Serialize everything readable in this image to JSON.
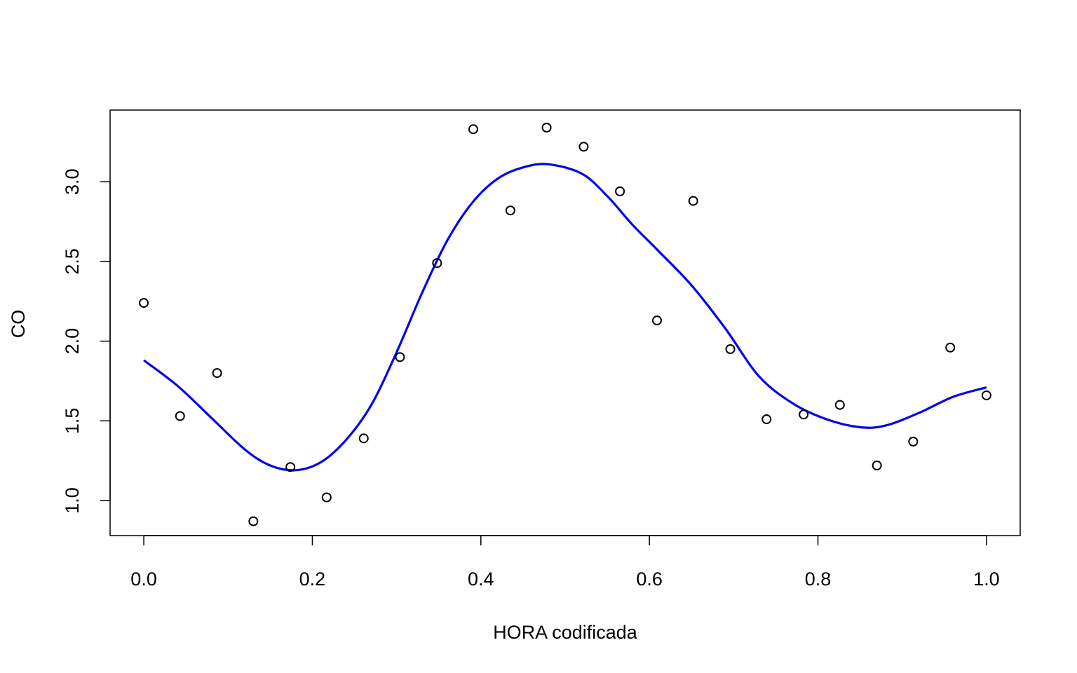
{
  "chart_data": {
    "type": "scatter",
    "title": "",
    "xlabel": "HORA codificada",
    "ylabel": "CO",
    "xlim": [
      -0.04,
      1.04
    ],
    "ylim": [
      0.78,
      3.45
    ],
    "x_ticks": [
      {
        "value": 0.0,
        "label": "0.0"
      },
      {
        "value": 0.2,
        "label": "0.2"
      },
      {
        "value": 0.4,
        "label": "0.4"
      },
      {
        "value": 0.6,
        "label": "0.6"
      },
      {
        "value": 0.8,
        "label": "0.8"
      },
      {
        "value": 1.0,
        "label": "1.0"
      }
    ],
    "y_ticks": [
      {
        "value": 1.0,
        "label": "1.0"
      },
      {
        "value": 1.5,
        "label": "1.5"
      },
      {
        "value": 2.0,
        "label": "2.0"
      },
      {
        "value": 2.5,
        "label": "2.5"
      },
      {
        "value": 3.0,
        "label": "3.0"
      }
    ],
    "grid": false,
    "points": [
      {
        "x": 0.0,
        "y": 2.24
      },
      {
        "x": 0.043,
        "y": 1.53
      },
      {
        "x": 0.087,
        "y": 1.8
      },
      {
        "x": 0.13,
        "y": 0.87
      },
      {
        "x": 0.174,
        "y": 1.21
      },
      {
        "x": 0.217,
        "y": 1.02
      },
      {
        "x": 0.261,
        "y": 1.39
      },
      {
        "x": 0.304,
        "y": 1.9
      },
      {
        "x": 0.348,
        "y": 2.49
      },
      {
        "x": 0.391,
        "y": 3.33
      },
      {
        "x": 0.435,
        "y": 2.82
      },
      {
        "x": 0.478,
        "y": 3.34
      },
      {
        "x": 0.522,
        "y": 3.22
      },
      {
        "x": 0.565,
        "y": 2.94
      },
      {
        "x": 0.609,
        "y": 2.13
      },
      {
        "x": 0.652,
        "y": 2.88
      },
      {
        "x": 0.696,
        "y": 1.95
      },
      {
        "x": 0.739,
        "y": 1.51
      },
      {
        "x": 0.783,
        "y": 1.54
      },
      {
        "x": 0.826,
        "y": 1.6
      },
      {
        "x": 0.87,
        "y": 1.22
      },
      {
        "x": 0.913,
        "y": 1.37
      },
      {
        "x": 0.957,
        "y": 1.96
      },
      {
        "x": 1.0,
        "y": 1.66
      }
    ],
    "smooth_line": {
      "color": "#0000ee",
      "points": [
        {
          "x": 0.0,
          "y": 1.88
        },
        {
          "x": 0.04,
          "y": 1.72
        },
        {
          "x": 0.08,
          "y": 1.52
        },
        {
          "x": 0.12,
          "y": 1.32
        },
        {
          "x": 0.15,
          "y": 1.22
        },
        {
          "x": 0.18,
          "y": 1.19
        },
        {
          "x": 0.21,
          "y": 1.24
        },
        {
          "x": 0.24,
          "y": 1.38
        },
        {
          "x": 0.27,
          "y": 1.6
        },
        {
          "x": 0.3,
          "y": 1.93
        },
        {
          "x": 0.33,
          "y": 2.3
        },
        {
          "x": 0.36,
          "y": 2.63
        },
        {
          "x": 0.39,
          "y": 2.87
        },
        {
          "x": 0.42,
          "y": 3.02
        },
        {
          "x": 0.45,
          "y": 3.09
        },
        {
          "x": 0.48,
          "y": 3.11
        },
        {
          "x": 0.52,
          "y": 3.05
        },
        {
          "x": 0.55,
          "y": 2.91
        },
        {
          "x": 0.58,
          "y": 2.73
        },
        {
          "x": 0.61,
          "y": 2.57
        },
        {
          "x": 0.65,
          "y": 2.35
        },
        {
          "x": 0.69,
          "y": 2.08
        },
        {
          "x": 0.73,
          "y": 1.78
        },
        {
          "x": 0.77,
          "y": 1.61
        },
        {
          "x": 0.81,
          "y": 1.51
        },
        {
          "x": 0.85,
          "y": 1.46
        },
        {
          "x": 0.88,
          "y": 1.47
        },
        {
          "x": 0.92,
          "y": 1.55
        },
        {
          "x": 0.96,
          "y": 1.65
        },
        {
          "x": 1.0,
          "y": 1.71
        }
      ]
    },
    "point_color": "#000000"
  }
}
